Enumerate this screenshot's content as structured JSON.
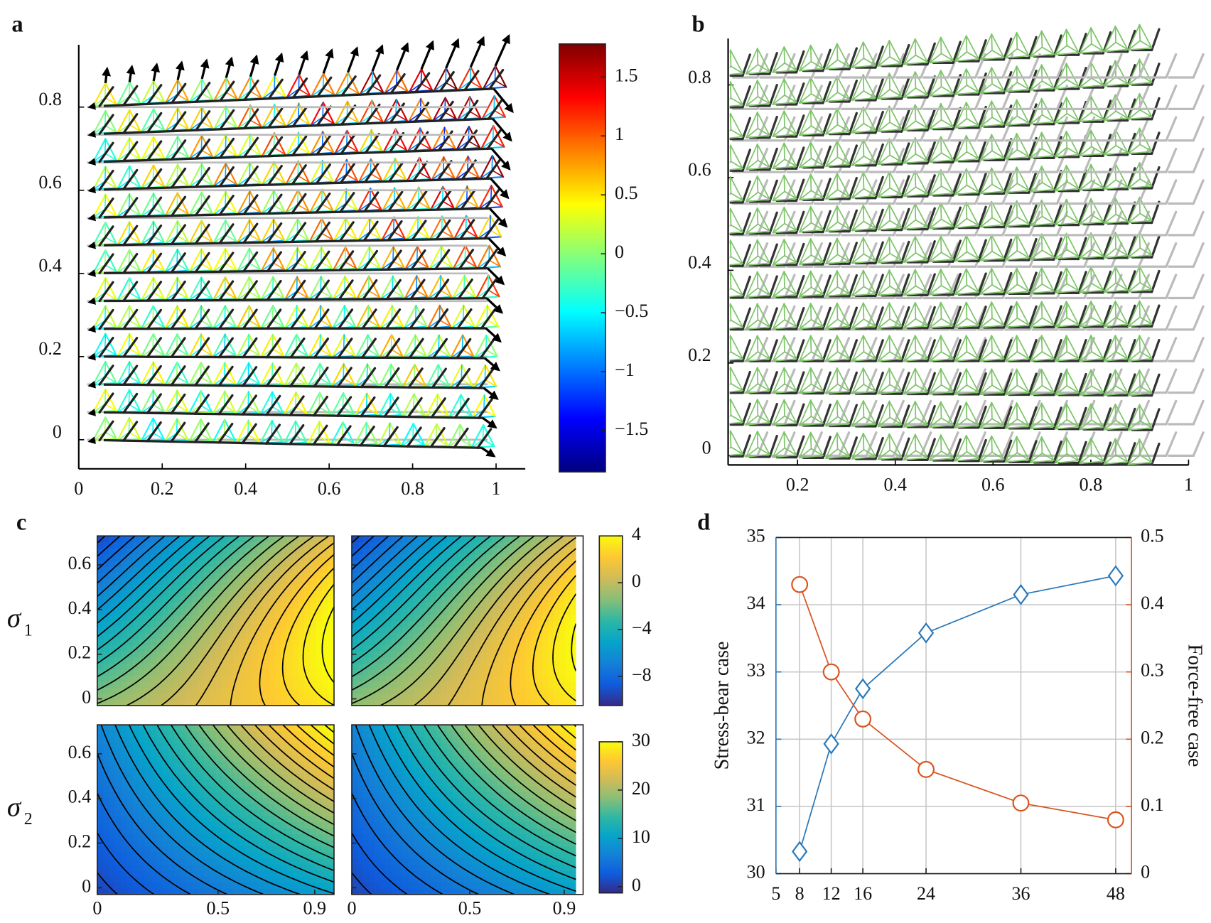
{
  "chart_data": [
    {
      "type": "lattice",
      "label": "a",
      "xlim": [
        0,
        1.07
      ],
      "ylim": [
        -0.07,
        0.95
      ],
      "xticks": [
        0,
        0.2,
        0.4,
        0.6,
        0.8,
        1
      ],
      "yticks": [
        0,
        0.2,
        0.4,
        0.6,
        0.8
      ],
      "colorbar": {
        "clim": [
          -1.85,
          1.78
        ],
        "ticks": [
          1.5,
          1,
          0.5,
          0,
          {
            "value": -0.5,
            "label": "−0.5"
          },
          {
            "value": -1,
            "label": "−1"
          },
          {
            "value": -1.5,
            "label": "−1.5"
          }
        ]
      }
    },
    {
      "type": "lattice",
      "label": "b",
      "xlim": [
        0.058,
        1
      ],
      "ylim": [
        -0.02,
        0.9
      ],
      "xticks": [
        0.2,
        0.4,
        0.6,
        0.8,
        1
      ],
      "yticks": [
        0,
        0.2,
        0.4,
        0.6,
        0.8
      ]
    },
    {
      "type": "contour",
      "label": "c",
      "xlim": [
        0,
        0.98
      ],
      "ylim": [
        -0.03,
        0.73
      ],
      "xticks": [
        0,
        0.5,
        0.9
      ],
      "yticks": [
        0,
        0.2,
        0.4,
        0.6
      ],
      "rows": [
        {
          "symbol": "σ",
          "subscript": "1",
          "clim": [
            -10.5,
            4
          ],
          "cticks": [
            4,
            0,
            {
              "value": -4,
              "label": "−4"
            },
            {
              "value": -8,
              "label": "−8"
            }
          ]
        },
        {
          "symbol": "σ",
          "subscript": "2",
          "clim": [
            -1.3,
            30
          ],
          "cticks": [
            30,
            20,
            10,
            0
          ]
        }
      ]
    },
    {
      "type": "line",
      "label": "d",
      "x": [
        8,
        12,
        16,
        24,
        36,
        48
      ],
      "xlim": [
        5,
        50
      ],
      "xticks": [
        5,
        8,
        12,
        16,
        24,
        36,
        48
      ],
      "ylim": [
        30,
        35
      ],
      "yticks": [
        30,
        31,
        32,
        33,
        34,
        35
      ],
      "y2lim": [
        0,
        0.5
      ],
      "y2ticks": [
        0,
        0.1,
        0.2,
        0.3,
        0.4,
        0.5
      ],
      "grid": true,
      "series": [
        {
          "name": "Stress-bear case",
          "color": "#2a78b8",
          "marker": "diamond",
          "values": [
            30.33,
            31.93,
            32.75,
            33.58,
            34.15,
            34.43
          ]
        },
        {
          "name": "Force-free case",
          "color": "#d9541f",
          "marker": "circle",
          "axis": "y2",
          "values": [
            0.43,
            0.3,
            0.23,
            0.155,
            0.105,
            0.08
          ]
        }
      ]
    }
  ]
}
